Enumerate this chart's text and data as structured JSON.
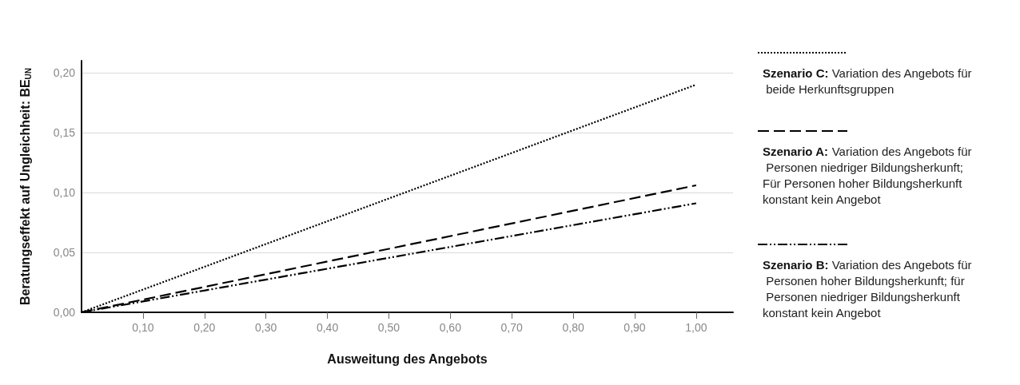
{
  "chart_data": {
    "type": "line",
    "xlabel": "Ausweitung des Angebots",
    "ylabel": "Beratungseffekt auf Ungleichheit: BE$_{UN}$",
    "x": [
      0,
      1
    ],
    "series": [
      {
        "name": "Szenario C: Variation des Angebots für beide Herkunftsgruppen",
        "color": "#000000",
        "values": [
          0,
          0.19
        ],
        "line_style": "dotted"
      },
      {
        "name": "Szenario A: Variation des Angebots für Personen niedriger Bildungsherkunft; Für Personen hoher Bildungsherkunft konstant kein Angebot",
        "color": "#000000",
        "values": [
          0,
          0.106
        ],
        "line_style": "dashed"
      },
      {
        "name": "Szenario B: Variation des Angebots für Personen hoher Bildungsherkunft; für Personen niedriger Bildungsherkunft konstant kein Angebot",
        "color": "#000000",
        "values": [
          0,
          0.091
        ],
        "line_style": "dashdotdot"
      }
    ],
    "xlim": [
      0,
      1.06
    ],
    "xticks": [
      {
        "value": 0.1,
        "label": "0,10"
      },
      {
        "value": 0.2,
        "label": "0,20"
      },
      {
        "value": 0.3,
        "label": "0,30"
      },
      {
        "value": 0.4,
        "label": "0,40"
      },
      {
        "value": 0.5,
        "label": "0,50"
      },
      {
        "value": 0.6,
        "label": "0,60"
      },
      {
        "value": 0.7,
        "label": "0,70"
      },
      {
        "value": 0.8,
        "label": "0,80"
      },
      {
        "value": 0.9,
        "label": "0,90"
      },
      {
        "value": 1.0,
        "label": "1,00"
      }
    ],
    "ylim": [
      0,
      0.21
    ],
    "yticks": [
      {
        "value": 0,
        "label": "0,00"
      },
      {
        "value": 0.05,
        "label": "0,05"
      },
      {
        "value": 0.1,
        "label": "0,10"
      },
      {
        "value": 0.15,
        "label": "0,15"
      },
      {
        "value": 0.2,
        "label": "0,20"
      }
    ],
    "grid": "y",
    "legend": "right",
    "marker": "none"
  }
}
